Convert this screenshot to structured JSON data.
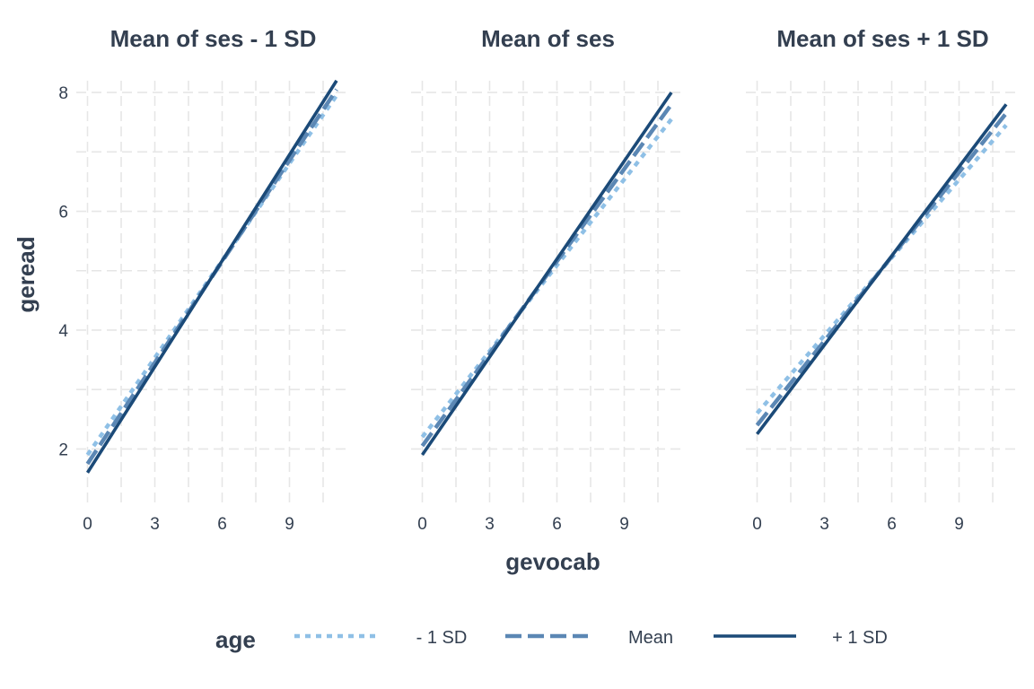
{
  "chart_data": {
    "type": "line",
    "xlabel": "gevocab",
    "ylabel": "geread",
    "x_ticks": [
      0,
      3,
      6,
      9
    ],
    "y_ticks": [
      2,
      4,
      6,
      8
    ],
    "xlim": [
      -0.5,
      11.7
    ],
    "ylim": [
      1.1,
      8.5
    ],
    "grid": "dashed",
    "legend": {
      "title": "age",
      "placement": "bottom",
      "entries": [
        {
          "label": "- 1 SD",
          "color": "#8fc0e6",
          "dash": "dotted"
        },
        {
          "label": "Mean",
          "color": "#5b87b4",
          "dash": "dashed"
        },
        {
          "label": "+ 1 SD",
          "color": "#1b4a78",
          "dash": "solid"
        }
      ]
    },
    "panels": [
      {
        "title": "Mean of ses - 1 SD",
        "series": [
          {
            "name": "- 1 SD",
            "x": [
              0,
              11.1
            ],
            "y": [
              1.9,
              7.95
            ]
          },
          {
            "name": "Mean",
            "x": [
              0,
              11.1
            ],
            "y": [
              1.75,
              8.05
            ]
          },
          {
            "name": "+ 1 SD",
            "x": [
              0,
              11.1
            ],
            "y": [
              1.6,
              8.2
            ]
          }
        ]
      },
      {
        "title": "Mean of ses",
        "series": [
          {
            "name": "- 1 SD",
            "x": [
              0,
              11.1
            ],
            "y": [
              2.2,
              7.55
            ]
          },
          {
            "name": "Mean",
            "x": [
              0,
              11.1
            ],
            "y": [
              2.05,
              7.8
            ]
          },
          {
            "name": "+ 1 SD",
            "x": [
              0,
              11.1
            ],
            "y": [
              1.9,
              8.0
            ]
          }
        ]
      },
      {
        "title": "Mean of ses + 1 SD",
        "series": [
          {
            "name": "- 1 SD",
            "x": [
              0,
              11.1
            ],
            "y": [
              2.6,
              7.45
            ]
          },
          {
            "name": "Mean",
            "x": [
              0,
              11.1
            ],
            "y": [
              2.4,
              7.65
            ]
          },
          {
            "name": "+ 1 SD",
            "x": [
              0,
              11.1
            ],
            "y": [
              2.25,
              7.8
            ]
          }
        ]
      }
    ]
  }
}
